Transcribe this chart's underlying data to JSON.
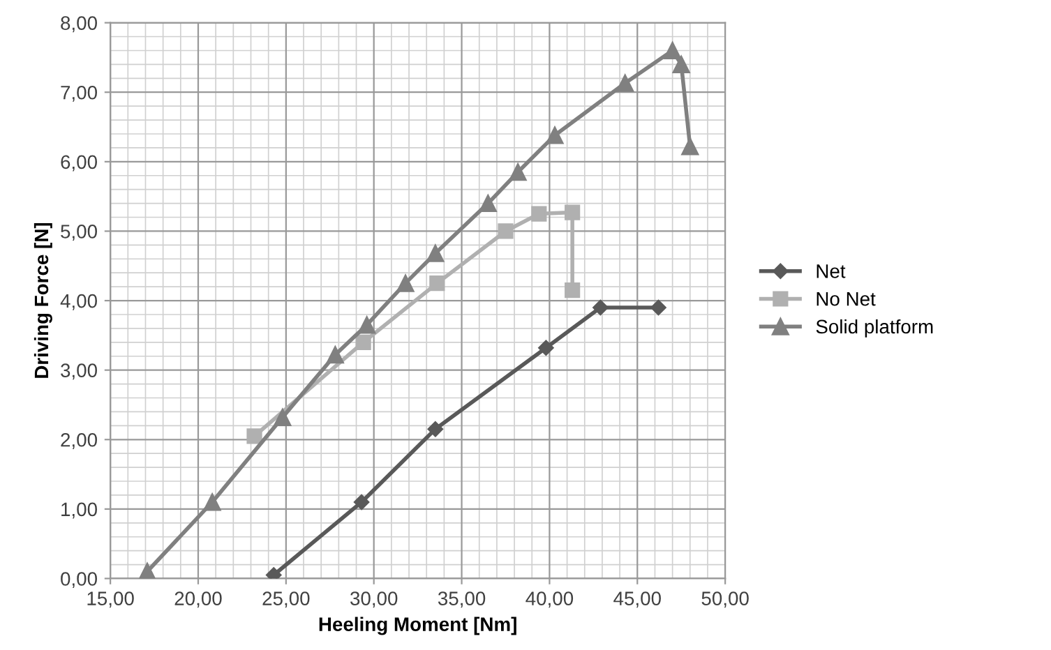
{
  "chart_data": {
    "type": "line",
    "xlabel": "Heeling Moment [Nm]",
    "ylabel": "Driving Force [N]",
    "xlim": [
      15,
      50
    ],
    "xticks": [
      {
        "value": 15,
        "label": "15,00"
      },
      {
        "value": 20,
        "label": "20,00"
      },
      {
        "value": 25,
        "label": "25,00"
      },
      {
        "value": 30,
        "label": "30,00"
      },
      {
        "value": 35,
        "label": "35,00"
      },
      {
        "value": 40,
        "label": "40,00"
      },
      {
        "value": 45,
        "label": "45,00"
      },
      {
        "value": 50,
        "label": "50,00"
      }
    ],
    "ylim": [
      0,
      8
    ],
    "yticks": [
      {
        "value": 0,
        "label": "0,00"
      },
      {
        "value": 1,
        "label": "1,00"
      },
      {
        "value": 2,
        "label": "2,00"
      },
      {
        "value": 3,
        "label": "3,00"
      },
      {
        "value": 4,
        "label": "4,00"
      },
      {
        "value": 5,
        "label": "5,00"
      },
      {
        "value": 6,
        "label": "6,00"
      },
      {
        "value": 7,
        "label": "7,00"
      },
      {
        "value": 8,
        "label": "8,00"
      }
    ],
    "grid": true,
    "legend": "right",
    "line_style": "solid",
    "series": [
      {
        "name": "Net",
        "color": "#595959",
        "marker": "diamond",
        "x": [
          24.3,
          29.3,
          33.5,
          39.8,
          42.9,
          46.2
        ],
        "values": [
          0.05,
          1.1,
          2.15,
          3.32,
          3.9,
          3.9
        ]
      },
      {
        "name": "No Net",
        "color": "#b0b0b0",
        "marker": "square",
        "x": [
          23.2,
          29.4,
          33.6,
          37.5,
          39.4,
          41.3,
          41.3
        ],
        "values": [
          2.05,
          3.4,
          4.25,
          5.0,
          5.25,
          5.27,
          4.15
        ]
      },
      {
        "name": "Solid platform",
        "color": "#808080",
        "marker": "triangle",
        "x": [
          17.1,
          20.8,
          24.8,
          27.8,
          29.6,
          31.8,
          33.5,
          36.5,
          38.2,
          40.3,
          44.3,
          47.0,
          47.5,
          48.0
        ],
        "values": [
          0.1,
          1.1,
          2.32,
          3.22,
          3.65,
          4.25,
          4.68,
          5.4,
          5.85,
          6.38,
          7.13,
          7.6,
          7.4,
          6.22
        ]
      }
    ]
  }
}
